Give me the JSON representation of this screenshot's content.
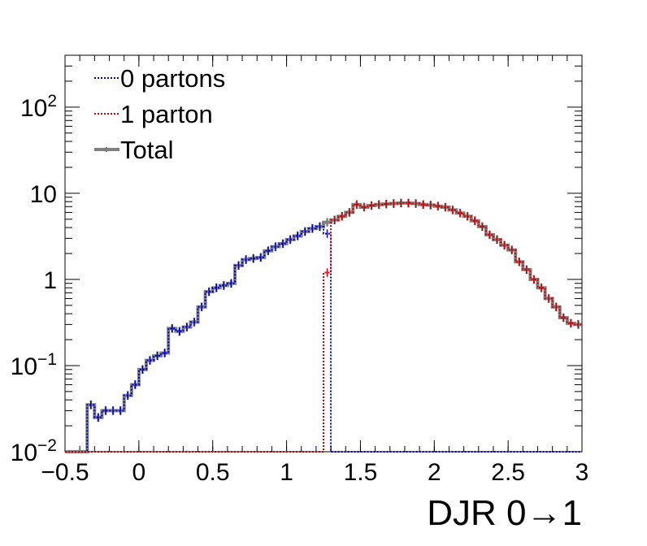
{
  "chart_data": {
    "type": "line",
    "title": "",
    "xlabel": "DJR 0→1",
    "ylabel": "",
    "xlim": [
      -0.5,
      3
    ],
    "ylim": [
      0.01,
      400
    ],
    "yscale": "log",
    "grid": false,
    "legend_position": "top-left",
    "x_ticks": [
      "−0.5",
      "0",
      "0.5",
      "1",
      "1.5",
      "2",
      "2.5",
      "3"
    ],
    "x_tick_values": [
      -0.5,
      0,
      0.5,
      1,
      1.5,
      2,
      2.5,
      3
    ],
    "y_ticks": [
      {
        "value": 0.01,
        "base": "10",
        "exp": "−2"
      },
      {
        "value": 0.1,
        "base": "10",
        "exp": "−1"
      },
      {
        "value": 1,
        "base": "1",
        "exp": ""
      },
      {
        "value": 10,
        "base": "10",
        "exp": ""
      },
      {
        "value": 100,
        "base": "10",
        "exp": "2"
      }
    ],
    "bin_width": 0.05,
    "bin_starts": [
      -0.5,
      -0.45,
      -0.4,
      -0.35,
      -0.3,
      -0.25,
      -0.2,
      -0.15,
      -0.1,
      -0.05,
      0,
      0.05,
      0.1,
      0.15,
      0.2,
      0.25,
      0.3,
      0.35,
      0.4,
      0.45,
      0.5,
      0.55,
      0.6,
      0.65,
      0.7,
      0.75,
      0.8,
      0.85,
      0.9,
      0.95,
      1,
      1.05,
      1.1,
      1.15,
      1.2,
      1.25,
      1.3,
      1.35,
      1.4,
      1.45,
      1.5,
      1.55,
      1.6,
      1.65,
      1.7,
      1.75,
      1.8,
      1.85,
      1.9,
      1.95,
      2,
      2.05,
      2.1,
      2.15,
      2.2,
      2.25,
      2.3,
      2.35,
      2.4,
      2.45,
      2.5,
      2.55,
      2.6,
      2.65,
      2.7,
      2.75,
      2.8,
      2.85,
      2.9,
      2.95
    ],
    "series": [
      {
        "name": "0 partons",
        "color": "#0000cc",
        "style": "dotted",
        "values": [
          0.01,
          0.01,
          0.01,
          0.035,
          0.025,
          0.03,
          0.03,
          0.03,
          0.045,
          0.06,
          0.09,
          0.115,
          0.13,
          0.14,
          0.27,
          0.25,
          0.28,
          0.32,
          0.48,
          0.72,
          0.8,
          0.85,
          0.9,
          1.45,
          1.7,
          1.75,
          1.8,
          2.15,
          2.4,
          2.6,
          2.9,
          3.2,
          3.6,
          3.9,
          4.1,
          3.4,
          0.01,
          0.01,
          0.01,
          0.01,
          0.01,
          0.01,
          0.01,
          0.01,
          0.01,
          0.01,
          0.01,
          0.01,
          0.01,
          0.01,
          0.01,
          0.01,
          0.01,
          0.01,
          0.01,
          0.01,
          0.01,
          0.01,
          0.01,
          0.01,
          0.01,
          0.01,
          0.01,
          0.01,
          0.01,
          0.01,
          0.01,
          0.01,
          0.01,
          0.01
        ]
      },
      {
        "name": "1 parton",
        "color": "#cc0000",
        "style": "dotted",
        "values": [
          0.01,
          0.01,
          0.01,
          0.01,
          0.01,
          0.01,
          0.01,
          0.01,
          0.01,
          0.01,
          0.01,
          0.01,
          0.01,
          0.01,
          0.01,
          0.01,
          0.01,
          0.01,
          0.01,
          0.01,
          0.01,
          0.01,
          0.01,
          0.01,
          0.01,
          0.01,
          0.01,
          0.01,
          0.01,
          0.01,
          0.01,
          0.01,
          0.01,
          0.01,
          0.01,
          1.2,
          4.9,
          5.4,
          6.0,
          7.4,
          6.9,
          7.2,
          7.4,
          7.5,
          7.6,
          7.7,
          7.7,
          7.6,
          7.4,
          7.3,
          7.1,
          6.9,
          6.4,
          5.9,
          5.4,
          4.8,
          4.1,
          3.3,
          2.9,
          2.5,
          2.2,
          1.6,
          1.3,
          1.0,
          0.8,
          0.6,
          0.48,
          0.36,
          0.31,
          0.3
        ]
      },
      {
        "name": "Total",
        "color": "#808080",
        "style": "solid",
        "values": [
          0.01,
          0.01,
          0.01,
          0.035,
          0.025,
          0.03,
          0.03,
          0.03,
          0.045,
          0.06,
          0.09,
          0.115,
          0.13,
          0.14,
          0.27,
          0.25,
          0.28,
          0.32,
          0.48,
          0.72,
          0.8,
          0.85,
          0.9,
          1.45,
          1.7,
          1.75,
          1.8,
          2.15,
          2.4,
          2.6,
          2.9,
          3.2,
          3.6,
          3.9,
          4.1,
          4.6,
          4.9,
          5.4,
          6.0,
          7.4,
          6.9,
          7.2,
          7.4,
          7.5,
          7.6,
          7.7,
          7.7,
          7.6,
          7.4,
          7.3,
          7.1,
          6.9,
          6.4,
          5.9,
          5.4,
          4.8,
          4.1,
          3.3,
          2.9,
          2.5,
          2.2,
          1.6,
          1.3,
          1.0,
          0.8,
          0.6,
          0.48,
          0.36,
          0.31,
          0.3
        ]
      }
    ]
  }
}
